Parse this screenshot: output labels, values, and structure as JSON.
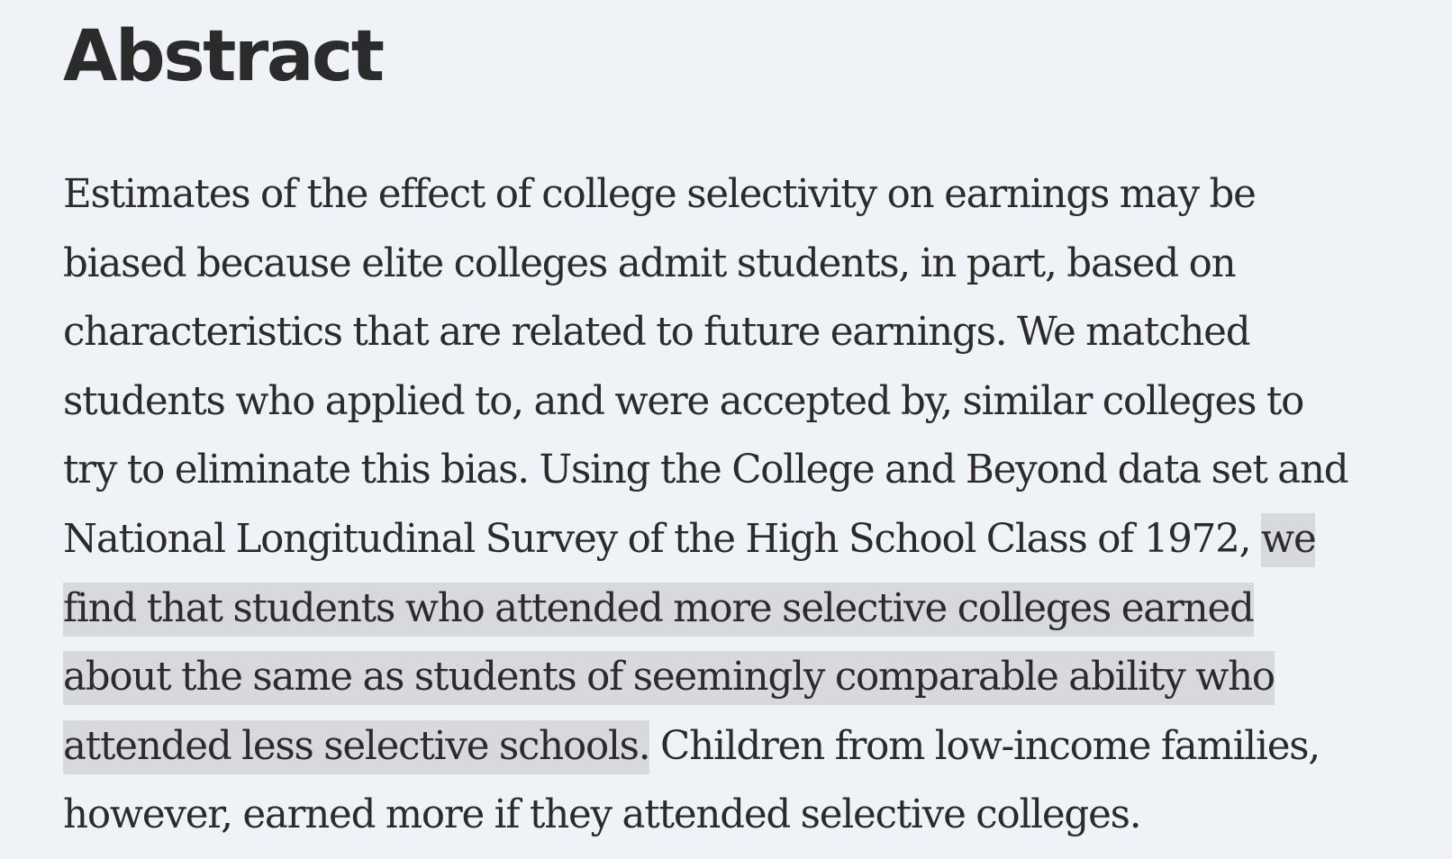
{
  "heading": "Abstract",
  "abstract": {
    "lines": [
      "Estimates of the effect of college selectivity on earnings may be",
      "biased because elite colleges admit students, in part, based on",
      "characteristics that are related to future earnings. We matched",
      "students who applied to, and were accepted by, similar colleges to",
      "try to eliminate this bias. Using the College and Beyond data set and"
    ],
    "line6_plain": "National Longitudinal Survey of the High School Class of 1972, ",
    "line6_highlight": "we",
    "line7_highlight": "find that students who attended more selective colleges earned",
    "line8_highlight": "about the same as students of seemingly comparable ability who",
    "line9_highlight": "attended less selective schools.",
    "line9_plain": " Children from low-income families,",
    "line10": "however, earned more if they attended selective colleges."
  },
  "colors": {
    "background": "#eff2f7",
    "text": "#2b2b2b",
    "highlight": "#d8d9dc"
  }
}
